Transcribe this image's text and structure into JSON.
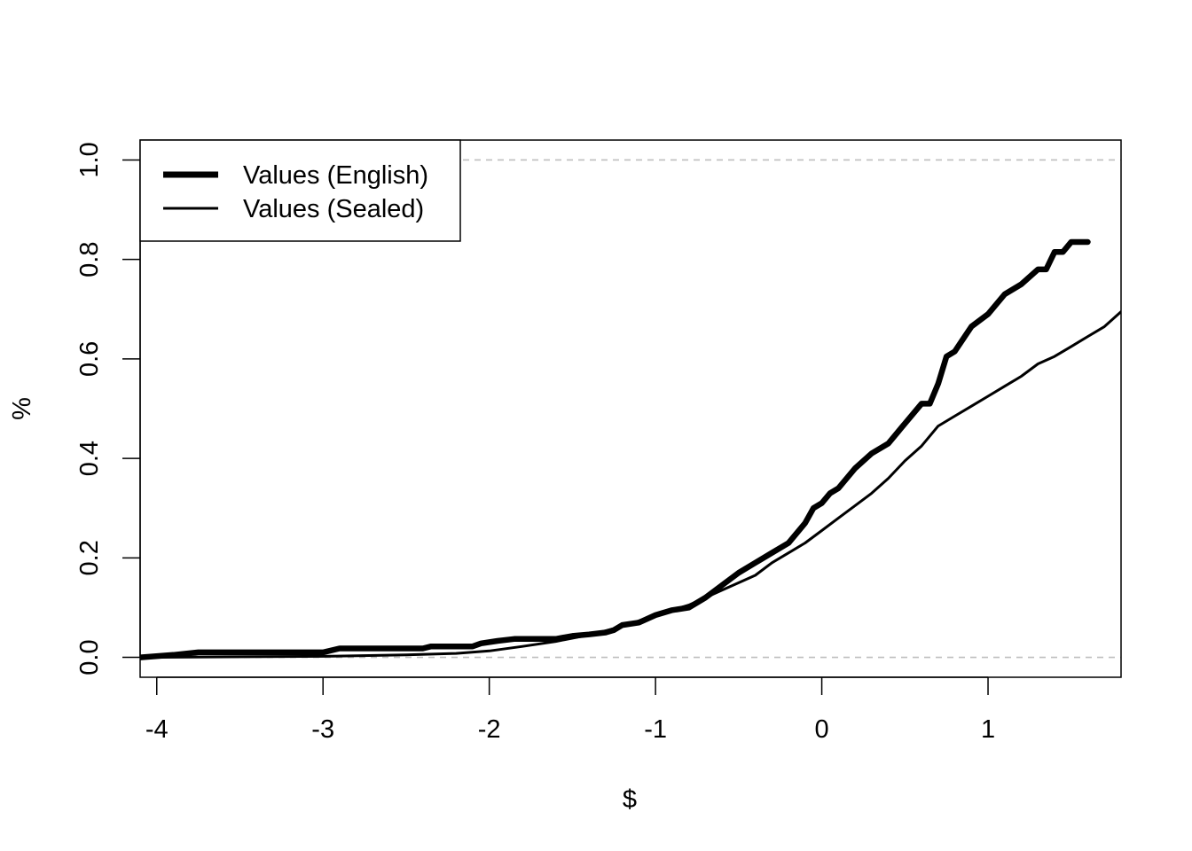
{
  "chart_data": {
    "type": "line",
    "title": "",
    "xlabel": "$",
    "ylabel": "%",
    "xlim": [
      -4.1,
      1.8
    ],
    "ylim": [
      -0.04,
      1.04
    ],
    "x_ticks": [
      -4,
      -3,
      -2,
      -1,
      0,
      1
    ],
    "x_tick_labels": [
      "-4",
      "-3",
      "-2",
      "-1",
      "0",
      "1"
    ],
    "y_ticks": [
      0.0,
      0.2,
      0.4,
      0.6,
      0.8,
      1.0
    ],
    "y_tick_labels": [
      "0.0",
      "0.2",
      "0.4",
      "0.6",
      "0.8",
      "1.0"
    ],
    "reference_lines": [
      0.0,
      1.0
    ],
    "grid": false,
    "legend": {
      "position": "top-left"
    },
    "colors": {
      "line": "#000000",
      "reference": "#bebebe"
    },
    "series": [
      {
        "name": "Values (English)",
        "style": "thick",
        "x": [
          -4.1,
          -3.9,
          -3.75,
          -3.5,
          -3.0,
          -2.9,
          -2.5,
          -2.4,
          -2.35,
          -2.1,
          -2.05,
          -1.95,
          -1.85,
          -1.6,
          -1.5,
          -1.4,
          -1.3,
          -1.25,
          -1.2,
          -1.1,
          -1.0,
          -0.9,
          -0.8,
          -0.7,
          -0.6,
          -0.5,
          -0.4,
          -0.3,
          -0.2,
          -0.1,
          -0.05,
          0.0,
          0.05,
          0.1,
          0.2,
          0.3,
          0.4,
          0.5,
          0.6,
          0.65,
          0.7,
          0.75,
          0.8,
          0.85,
          0.9,
          1.0,
          1.1,
          1.2,
          1.3,
          1.35,
          1.4,
          1.45,
          1.5,
          1.55,
          1.6
        ],
        "y": [
          0.0,
          0.005,
          0.01,
          0.01,
          0.01,
          0.018,
          0.018,
          0.018,
          0.022,
          0.022,
          0.028,
          0.033,
          0.037,
          0.037,
          0.043,
          0.046,
          0.05,
          0.055,
          0.065,
          0.07,
          0.085,
          0.095,
          0.1,
          0.12,
          0.145,
          0.17,
          0.19,
          0.21,
          0.23,
          0.27,
          0.3,
          0.31,
          0.33,
          0.34,
          0.38,
          0.41,
          0.43,
          0.47,
          0.51,
          0.51,
          0.55,
          0.605,
          0.615,
          0.64,
          0.665,
          0.69,
          0.73,
          0.75,
          0.78,
          0.78,
          0.815,
          0.815,
          0.835,
          0.835,
          0.835
        ]
      },
      {
        "name": "Values (Sealed)",
        "style": "thin",
        "x": [
          -4.1,
          -3.0,
          -2.5,
          -2.2,
          -2.0,
          -1.8,
          -1.6,
          -1.4,
          -1.2,
          -1.0,
          -0.8,
          -0.6,
          -0.4,
          -0.3,
          -0.2,
          -0.1,
          0.0,
          0.1,
          0.2,
          0.3,
          0.4,
          0.5,
          0.6,
          0.7,
          0.8,
          0.9,
          1.0,
          1.1,
          1.2,
          1.3,
          1.4,
          1.5,
          1.6,
          1.7,
          1.8
        ],
        "y": [
          0.0,
          0.002,
          0.005,
          0.008,
          0.013,
          0.022,
          0.032,
          0.045,
          0.062,
          0.085,
          0.105,
          0.135,
          0.165,
          0.19,
          0.21,
          0.23,
          0.255,
          0.28,
          0.305,
          0.33,
          0.36,
          0.395,
          0.425,
          0.465,
          0.485,
          0.505,
          0.525,
          0.545,
          0.565,
          0.59,
          0.605,
          0.625,
          0.645,
          0.665,
          0.695
        ]
      }
    ]
  }
}
